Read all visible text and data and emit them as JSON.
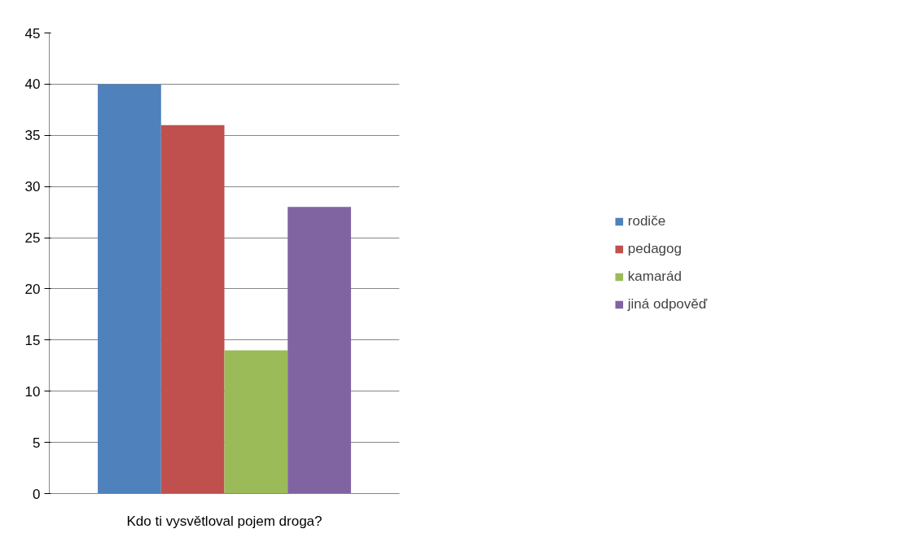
{
  "chart_data": {
    "type": "bar",
    "categories": [
      "Kdo ti vysvětloval pojem droga?"
    ],
    "series": [
      {
        "name": "rodiče",
        "color": "#4f81bd",
        "values": [
          40
        ]
      },
      {
        "name": "pedagog",
        "color": "#c0504d",
        "values": [
          36
        ]
      },
      {
        "name": "kamarád",
        "color": "#9bbb59",
        "values": [
          14
        ]
      },
      {
        "name": "jiná odpověď",
        "color": "#8064a2",
        "values": [
          28
        ]
      }
    ],
    "ylim": [
      0,
      45
    ],
    "yticks": [
      0,
      5,
      10,
      15,
      20,
      25,
      30,
      35,
      40,
      45
    ],
    "grid": "y",
    "legend": "right"
  }
}
